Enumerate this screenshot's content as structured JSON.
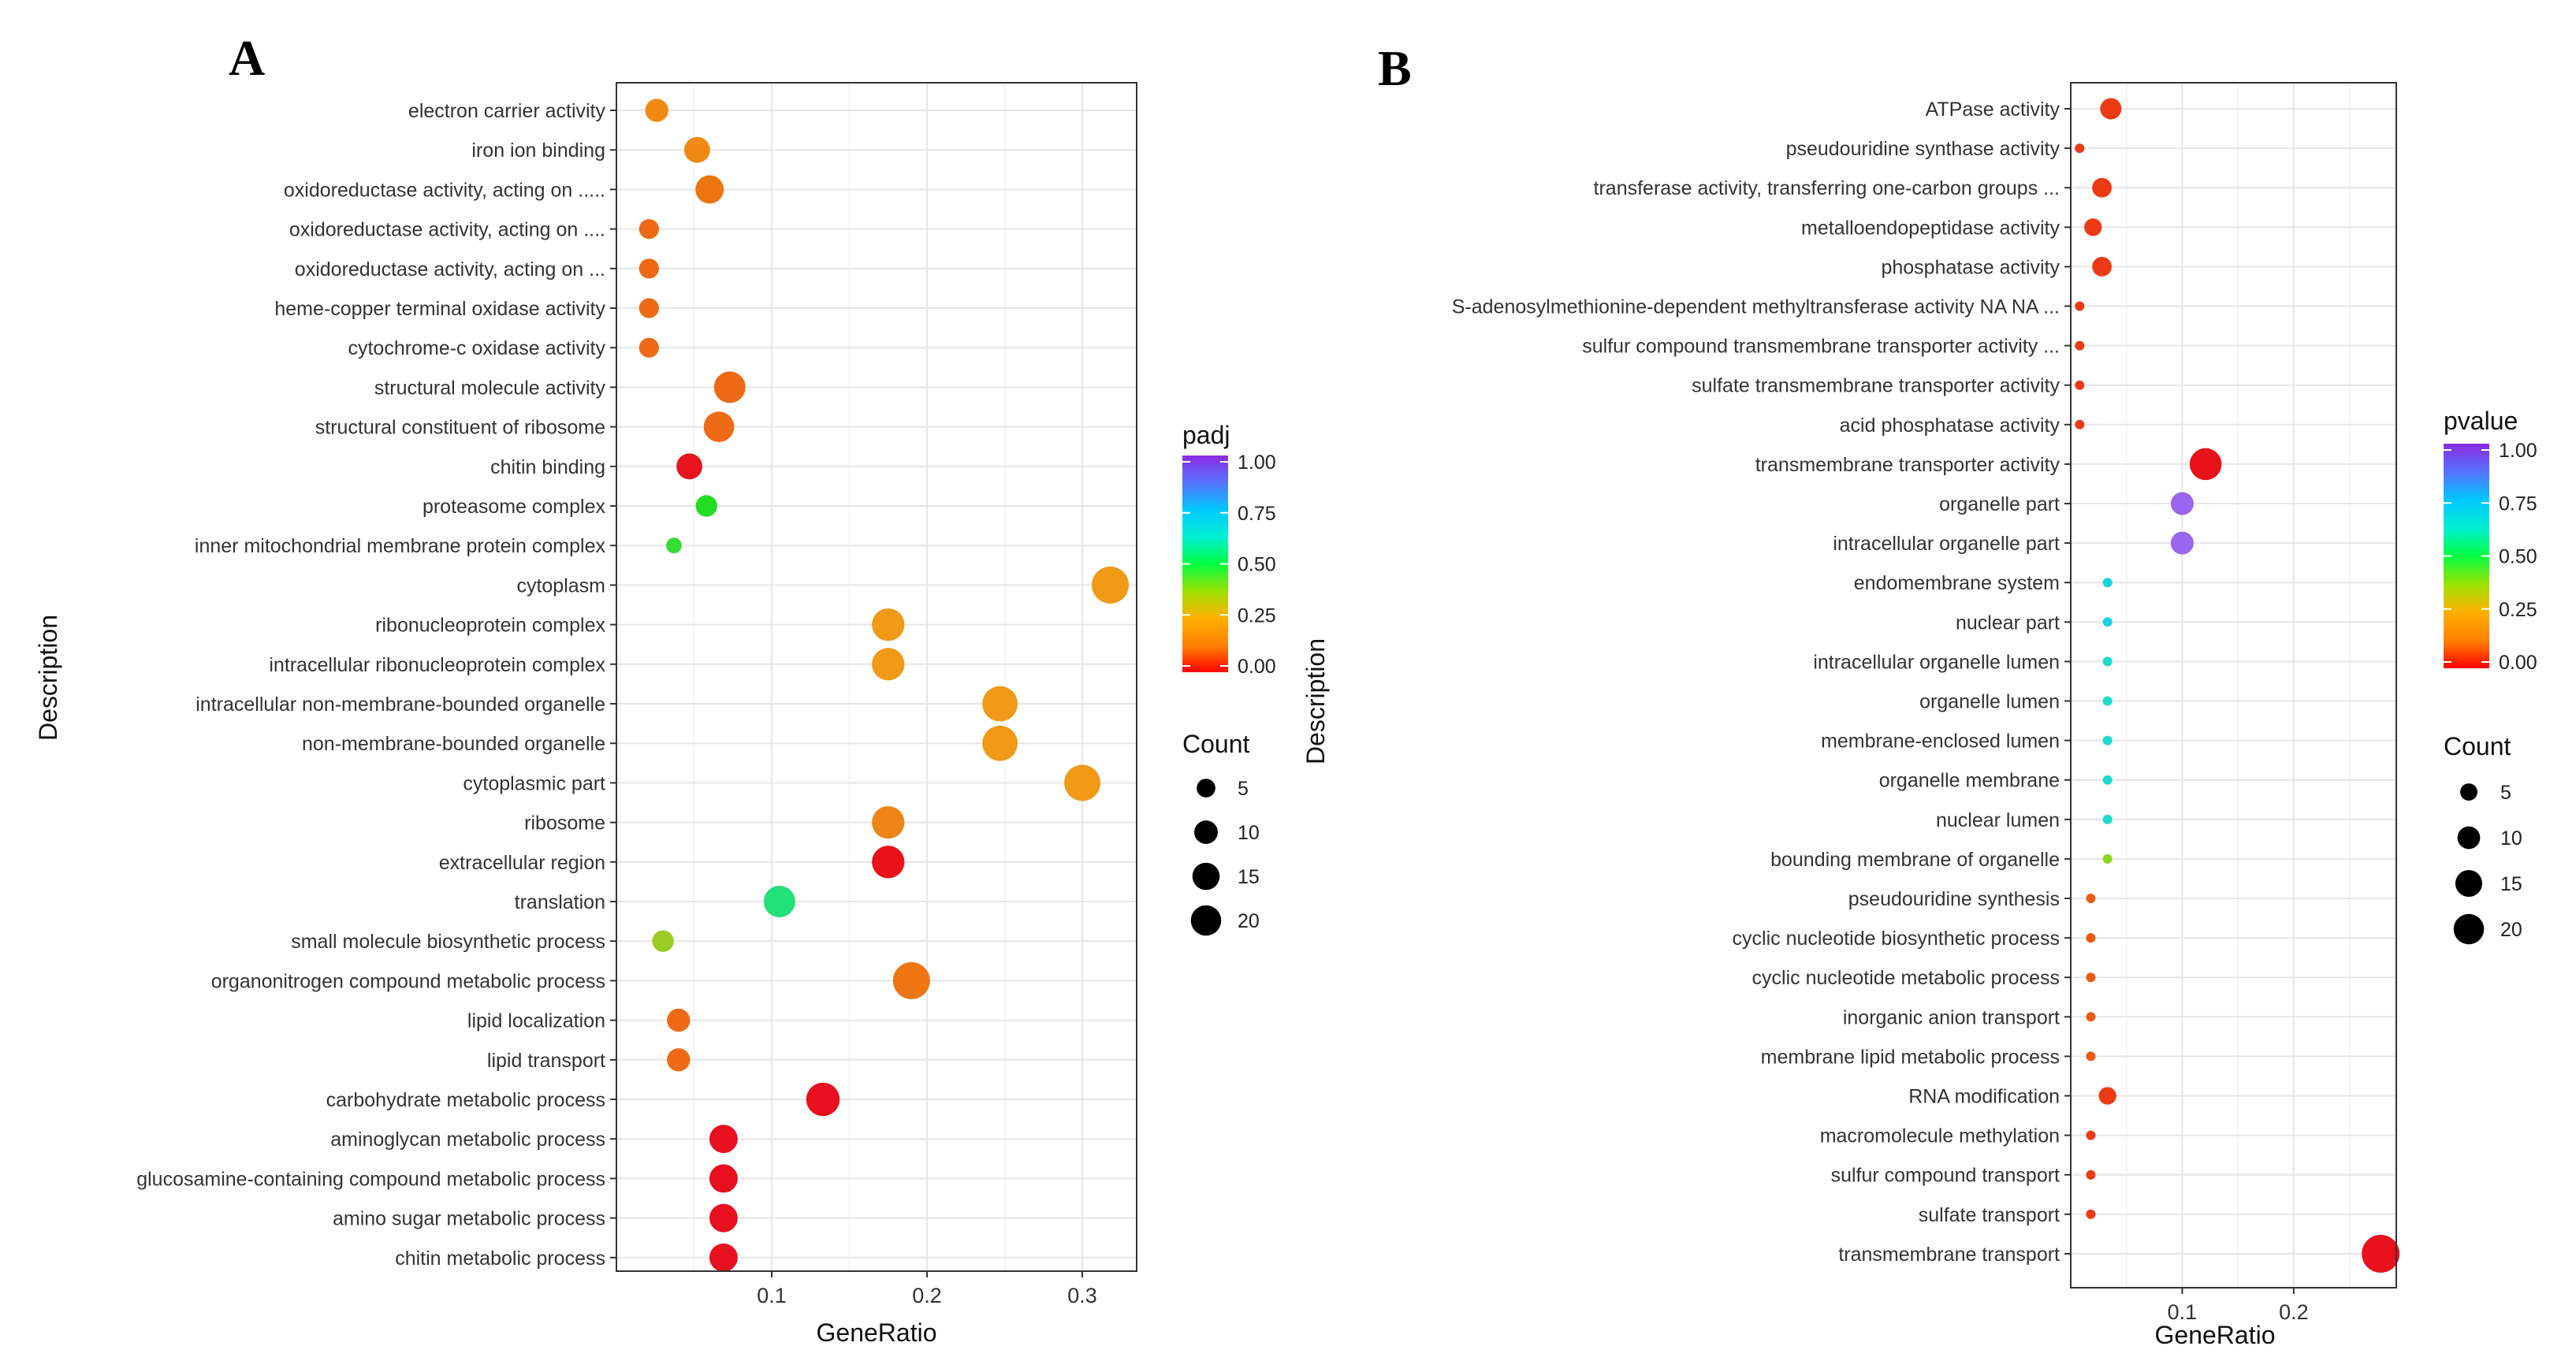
{
  "chart_data": [
    {
      "type": "scatter",
      "panel": "A",
      "xlabel": "GeneRatio",
      "ylabel": "Description",
      "xlim": [
        0.0,
        0.335
      ],
      "xticks": [
        0.1,
        0.2,
        0.3
      ],
      "xtick_labels": [
        "0.1",
        "0.2",
        "0.3"
      ],
      "color_var": "padj",
      "color_ticks": [
        "1.00",
        "0.75",
        "0.50",
        "0.25",
        "0.00"
      ],
      "size_var": "Count",
      "size_ticks": [
        "5",
        "10",
        "15",
        "20"
      ],
      "size_values": [
        5,
        10,
        15,
        20
      ],
      "grid": true,
      "points": [
        {
          "label": "electron carrier activity",
          "x": 0.026,
          "count": 6,
          "color": "#f08a14"
        },
        {
          "label": "iron ion binding",
          "x": 0.052,
          "count": 8,
          "color": "#f08a14"
        },
        {
          "label": "oxidoreductase activity, acting on .....",
          "x": 0.06,
          "count": 10,
          "color": "#ee7510"
        },
        {
          "label": "oxidoreductase activity, acting on ....",
          "x": 0.021,
          "count": 4,
          "color": "#ee6a14"
        },
        {
          "label": "oxidoreductase activity, acting on ...",
          "x": 0.021,
          "count": 4,
          "color": "#ee6a14"
        },
        {
          "label": "heme-copper terminal oxidase activity",
          "x": 0.021,
          "count": 4,
          "color": "#ee6a14"
        },
        {
          "label": "cytochrome-c oxidase activity",
          "x": 0.021,
          "count": 4,
          "color": "#ee6a14"
        },
        {
          "label": "structural molecule activity",
          "x": 0.073,
          "count": 13,
          "color": "#ee6a14"
        },
        {
          "label": "structural constituent of ribosome",
          "x": 0.066,
          "count": 12,
          "color": "#ee6a14"
        },
        {
          "label": "chitin binding",
          "x": 0.047,
          "count": 8,
          "color": "#e8141e"
        },
        {
          "label": "proteasome complex",
          "x": 0.058,
          "count": 5,
          "color": "#22dd22"
        },
        {
          "label": "inner mitochondrial membrane protein complex",
          "x": 0.037,
          "count": 2,
          "color": "#33dd33"
        },
        {
          "label": "cytoplasm",
          "x": 0.318,
          "count": 19,
          "color": "#f09a18"
        },
        {
          "label": "ribonucleoprotein complex",
          "x": 0.175,
          "count": 14,
          "color": "#f09a18"
        },
        {
          "label": "intracellular ribonucleoprotein complex",
          "x": 0.175,
          "count": 14,
          "color": "#f09a18"
        },
        {
          "label": "intracellular non-membrane-bounded organelle",
          "x": 0.247,
          "count": 17,
          "color": "#f09a18"
        },
        {
          "label": "non-membrane-bounded organelle",
          "x": 0.247,
          "count": 17,
          "color": "#f09a18"
        },
        {
          "label": "cytoplasmic part",
          "x": 0.3,
          "count": 18,
          "color": "#f09a18"
        },
        {
          "label": "ribosome",
          "x": 0.175,
          "count": 14,
          "color": "#ee8518"
        },
        {
          "label": "extracellular region",
          "x": 0.175,
          "count": 14,
          "color": "#e81218"
        },
        {
          "label": "translation",
          "x": 0.105,
          "count": 13,
          "color": "#22e07a"
        },
        {
          "label": "small molecule biosynthetic process",
          "x": 0.03,
          "count": 5,
          "color": "#9ccc22"
        },
        {
          "label": "organonitrogen compound metabolic process",
          "x": 0.19,
          "count": 19,
          "color": "#ee7512"
        },
        {
          "label": "lipid localization",
          "x": 0.04,
          "count": 6,
          "color": "#ee6a14"
        },
        {
          "label": "lipid transport",
          "x": 0.04,
          "count": 6,
          "color": "#ee6a14"
        },
        {
          "label": "carbohydrate metabolic process",
          "x": 0.133,
          "count": 15,
          "color": "#e8101e"
        },
        {
          "label": "aminoglycan metabolic process",
          "x": 0.069,
          "count": 10,
          "color": "#e8101e"
        },
        {
          "label": "glucosamine-containing compound metabolic process",
          "x": 0.069,
          "count": 10,
          "color": "#e8101e"
        },
        {
          "label": "amino sugar metabolic process",
          "x": 0.069,
          "count": 10,
          "color": "#e8101e"
        },
        {
          "label": "chitin metabolic process",
          "x": 0.069,
          "count": 10,
          "color": "#e8101e"
        }
      ]
    },
    {
      "type": "scatter",
      "panel": "B",
      "xlabel": "GeneRatio",
      "ylabel": "Description",
      "xlim": [
        0.0,
        0.292
      ],
      "xticks": [
        0.1,
        0.2
      ],
      "xtick_labels": [
        "0.1",
        "0.2"
      ],
      "color_var": "pvalue",
      "color_ticks": [
        "1.00",
        "0.75",
        "0.50",
        "0.25",
        "0.00"
      ],
      "size_var": "Count",
      "size_ticks": [
        "5",
        "10",
        "15",
        "20"
      ],
      "size_values": [
        5,
        10,
        15,
        20
      ],
      "grid": true,
      "points": [
        {
          "label": "ATPase activity",
          "x": 0.036,
          "count": 6,
          "color": "#ee3a14"
        },
        {
          "label": "pseudouridine synthase activity",
          "x": 0.008,
          "count": 1,
          "color": "#ee3a14"
        },
        {
          "label": "transferase activity, transferring one-carbon groups ...",
          "x": 0.028,
          "count": 5,
          "color": "#ee3a14"
        },
        {
          "label": "metalloendopeptidase activity",
          "x": 0.02,
          "count": 4,
          "color": "#ee3a14"
        },
        {
          "label": "phosphatase activity",
          "x": 0.028,
          "count": 5,
          "color": "#ee3a14"
        },
        {
          "label": "S-adenosylmethionine-dependent methyltransferase activity NA NA ...",
          "x": 0.008,
          "count": 1,
          "color": "#ee3a14"
        },
        {
          "label": "sulfur compound transmembrane transporter activity ...",
          "x": 0.008,
          "count": 1,
          "color": "#ee3a14"
        },
        {
          "label": "sulfate transmembrane transporter activity",
          "x": 0.008,
          "count": 1,
          "color": "#ee3a14"
        },
        {
          "label": "acid phosphatase activity",
          "x": 0.008,
          "count": 1,
          "color": "#ee3a14"
        },
        {
          "label": "transmembrane transporter activity",
          "x": 0.121,
          "count": 14,
          "color": "#e81218"
        },
        {
          "label": "organelle part",
          "x": 0.1,
          "count": 7,
          "color": "#9a66ee"
        },
        {
          "label": "intracellular organelle part",
          "x": 0.1,
          "count": 7,
          "color": "#9a66ee"
        },
        {
          "label": "endomembrane system",
          "x": 0.033,
          "count": 1,
          "color": "#1ad2e0"
        },
        {
          "label": "nuclear part",
          "x": 0.033,
          "count": 1,
          "color": "#1ad2e0"
        },
        {
          "label": "intracellular organelle lumen",
          "x": 0.033,
          "count": 1,
          "color": "#1adcc8"
        },
        {
          "label": "organelle lumen",
          "x": 0.033,
          "count": 1,
          "color": "#1adcc8"
        },
        {
          "label": "membrane-enclosed lumen",
          "x": 0.033,
          "count": 1,
          "color": "#1adcc8"
        },
        {
          "label": "organelle membrane",
          "x": 0.033,
          "count": 1,
          "color": "#1adcc8"
        },
        {
          "label": "nuclear lumen",
          "x": 0.033,
          "count": 1,
          "color": "#1adcc8"
        },
        {
          "label": "bounding membrane of organelle",
          "x": 0.033,
          "count": 1,
          "color": "#8cd422"
        },
        {
          "label": "pseudouridine synthesis",
          "x": 0.018,
          "count": 1,
          "color": "#ee5a14"
        },
        {
          "label": "cyclic nucleotide biosynthetic process",
          "x": 0.018,
          "count": 1,
          "color": "#ee5a14"
        },
        {
          "label": "cyclic nucleotide metabolic process",
          "x": 0.018,
          "count": 1,
          "color": "#ee5a14"
        },
        {
          "label": "inorganic anion transport",
          "x": 0.018,
          "count": 1,
          "color": "#ee5a14"
        },
        {
          "label": "membrane lipid metabolic process",
          "x": 0.018,
          "count": 1,
          "color": "#ee5a14"
        },
        {
          "label": "RNA modification",
          "x": 0.033,
          "count": 4,
          "color": "#ee3a14"
        },
        {
          "label": "macromolecule methylation",
          "x": 0.018,
          "count": 1,
          "color": "#ee3a14"
        },
        {
          "label": "sulfur compound transport",
          "x": 0.018,
          "count": 1,
          "color": "#ee3a14"
        },
        {
          "label": "sulfate transport",
          "x": 0.018,
          "count": 1,
          "color": "#ee3a14"
        },
        {
          "label": "transmembrane transport",
          "x": 0.278,
          "count": 20,
          "color": "#e8101a"
        }
      ]
    }
  ],
  "colors": {
    "gradient": [
      "#ff0000",
      "#ff7f00",
      "#ffd000",
      "#a0e000",
      "#00ff40",
      "#00f0d0",
      "#00c8ff",
      "#5a70ff",
      "#8a2be2"
    ],
    "grid": "#ebebeb",
    "panel_border": "#333333"
  }
}
